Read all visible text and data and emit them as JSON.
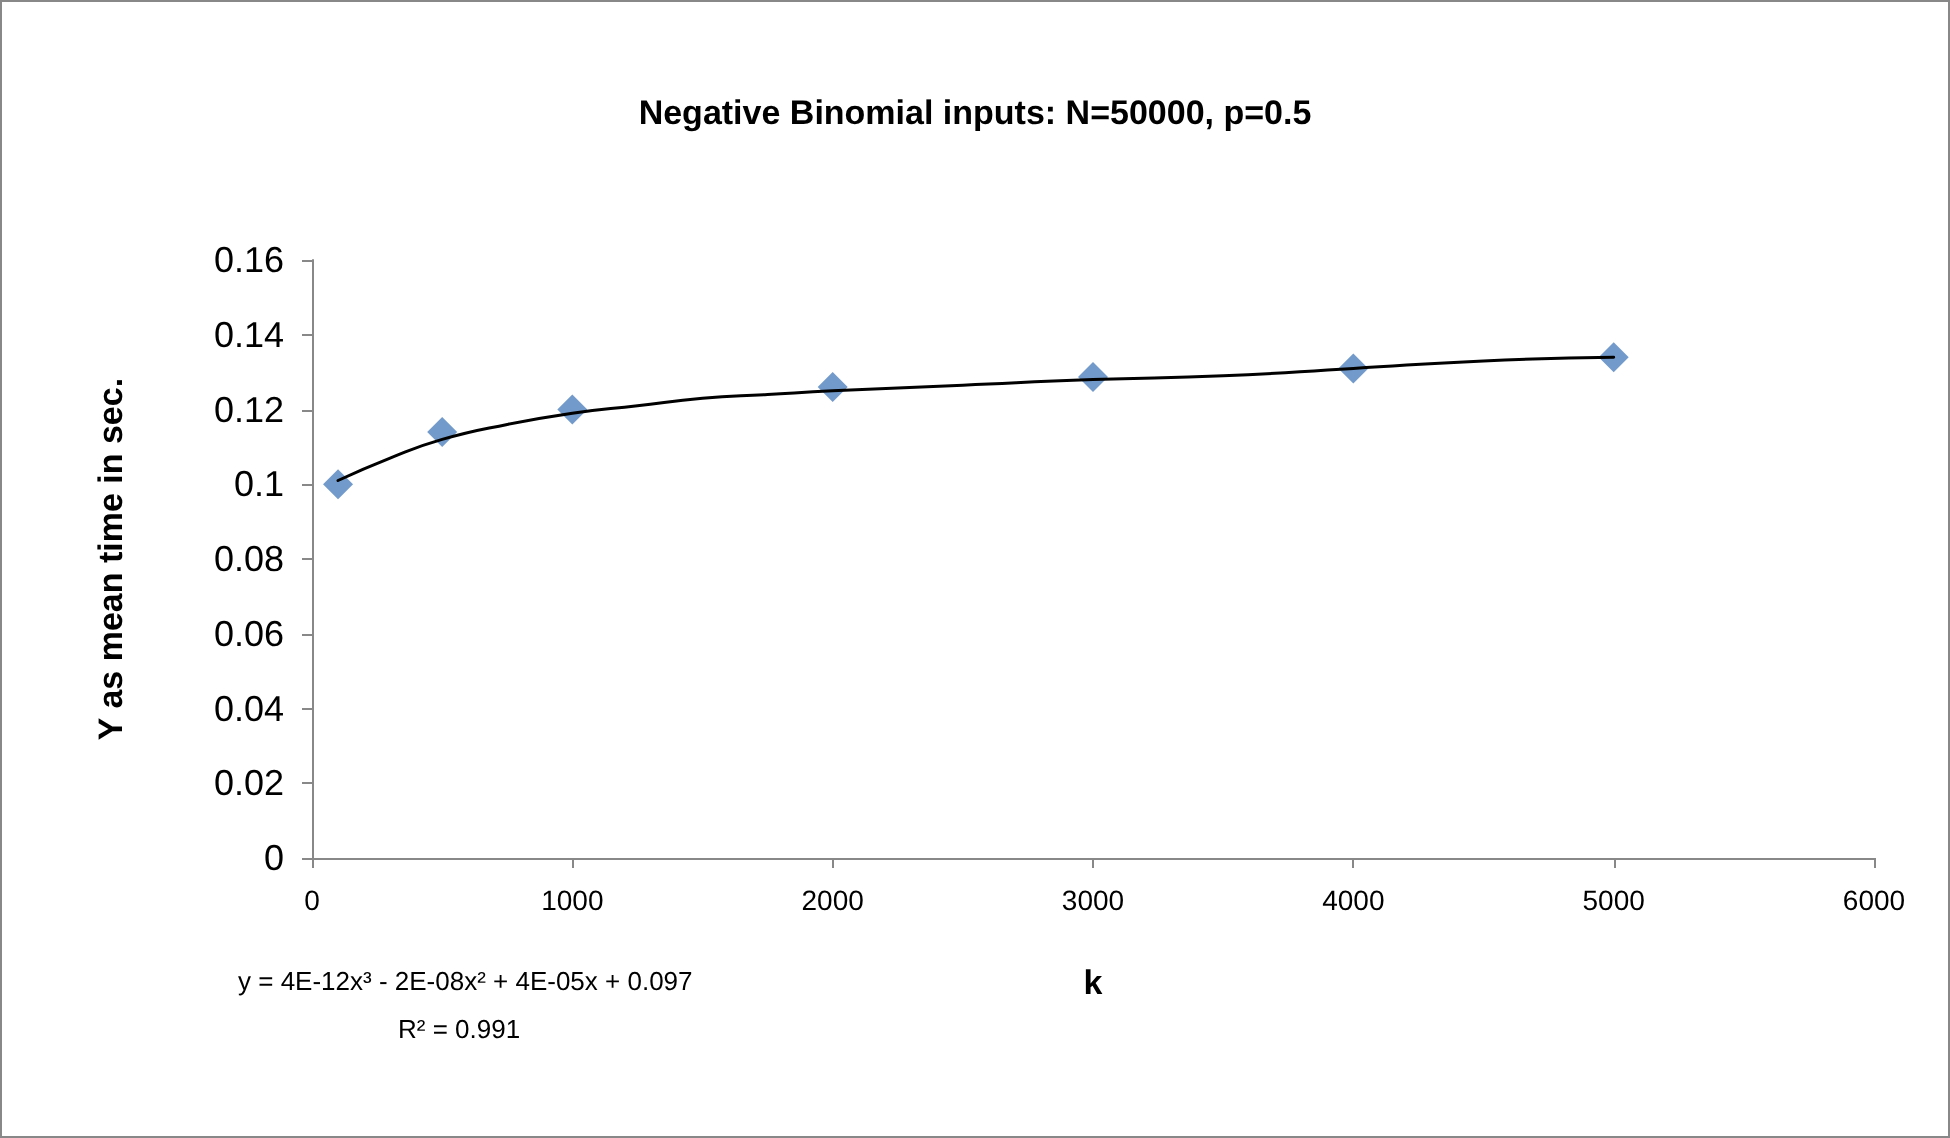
{
  "chart_data": {
    "type": "scatter",
    "title": "Negative Binomial inputs: N=50000, p=0.5",
    "xlabel": "k",
    "ylabel": "Y as mean time in sec.",
    "annotations": [
      "y = 4E-12x³ - 2E-08x² + 4E-05x + 0.097",
      "R² = 0.991"
    ],
    "series": [
      {
        "color": "#4f81bd",
        "marker": "diamond",
        "x": [
          100,
          500,
          1000,
          2000,
          3000,
          4000,
          5000
        ],
        "values": [
          0.1,
          0.114,
          0.12,
          0.126,
          0.1287,
          0.131,
          0.134
        ]
      },
      {
        "type": "line",
        "color": "#000000",
        "marker": "none",
        "line_style": "solid",
        "x": [
          100,
          300,
          500,
          750,
          1000,
          1250,
          1500,
          1750,
          2000,
          2500,
          3000,
          3500,
          4000,
          4500,
          5000
        ],
        "values": [
          0.101,
          0.107,
          0.112,
          0.116,
          0.119,
          0.121,
          0.123,
          0.124,
          0.125,
          0.1265,
          0.128,
          0.129,
          0.131,
          0.133,
          0.134
        ]
      }
    ],
    "xlim": [
      0,
      6000
    ],
    "xticks": [
      0,
      1000,
      2000,
      3000,
      4000,
      5000,
      6000
    ],
    "ylim": [
      0,
      0.16
    ],
    "yticks": [
      0,
      0.02,
      0.04,
      0.06,
      0.08,
      0.1,
      0.12,
      0.14,
      0.16
    ],
    "grid": false
  }
}
